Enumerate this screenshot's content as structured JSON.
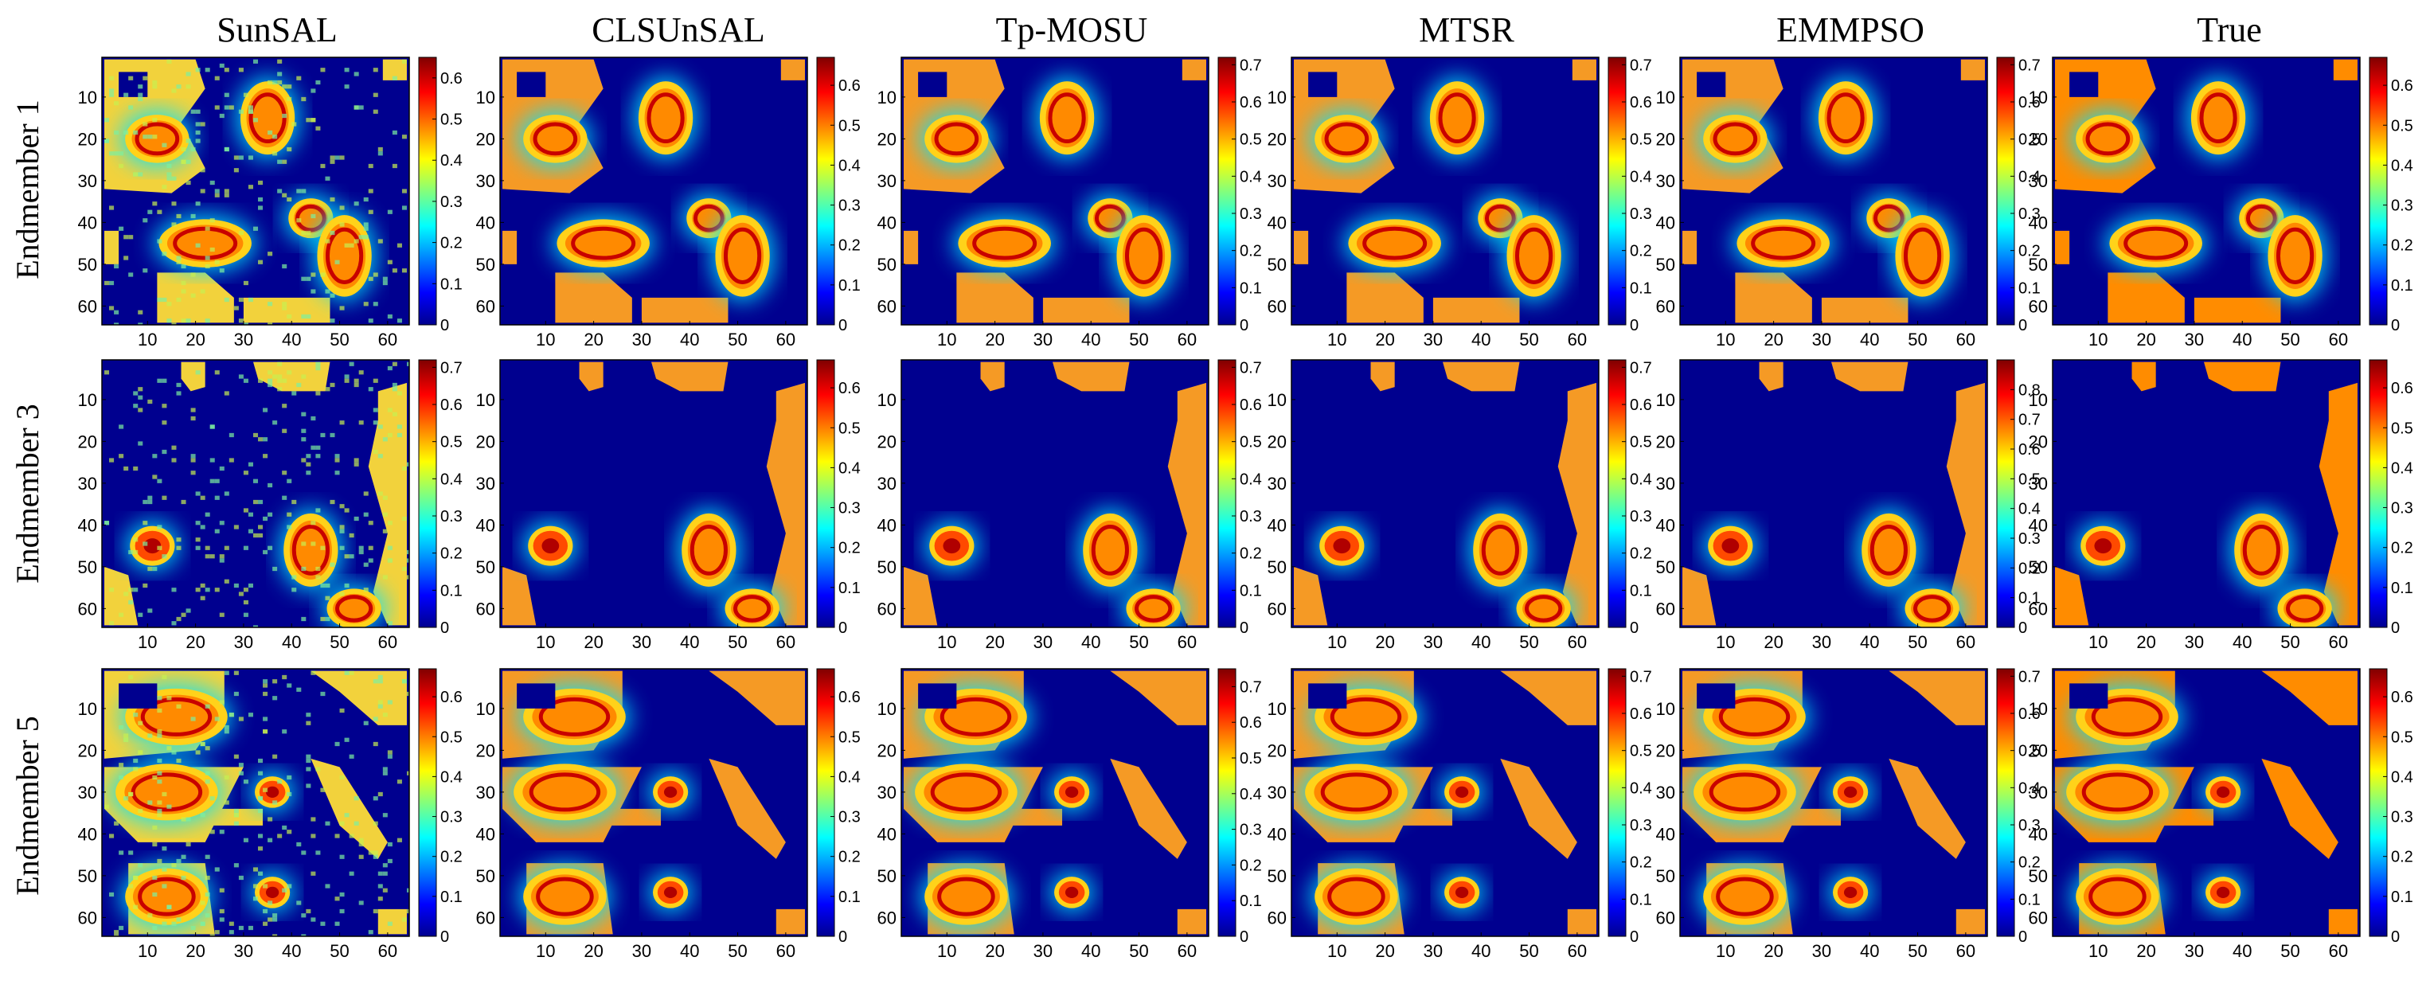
{
  "chart_data": {
    "type": "heatmap",
    "title": "",
    "methods": [
      "SunSAL",
      "CLSUnSAL",
      "Tp-MOSU",
      "MTSR",
      "EMMPSO",
      "True"
    ],
    "endmembers": [
      "Endmember 1",
      "Endmember 3",
      "Endmember 5"
    ],
    "grid_size": 64,
    "axis_range": [
      1,
      64
    ],
    "x_ticks": [
      10,
      20,
      30,
      40,
      50,
      60
    ],
    "y_ticks": [
      10,
      20,
      30,
      40,
      50,
      60
    ],
    "colormap": "jet",
    "colormap_stops": [
      "#00008f",
      "#0000ff",
      "#00ffff",
      "#ffff00",
      "#ff0000",
      "#800000"
    ],
    "colorbar_ranges": [
      [
        [
          0,
          0.65
        ],
        [
          0,
          0.67
        ],
        [
          0,
          0.72
        ],
        [
          0,
          0.72
        ],
        [
          0,
          0.72
        ],
        [
          0,
          0.67
        ]
      ],
      [
        [
          0,
          0.72
        ],
        [
          0,
          0.67
        ],
        [
          0,
          0.72
        ],
        [
          0,
          0.72
        ],
        [
          0,
          0.9
        ],
        [
          0,
          0.67
        ]
      ],
      [
        [
          0,
          0.67
        ],
        [
          0,
          0.67
        ],
        [
          0,
          0.75
        ],
        [
          0,
          0.72
        ],
        [
          0,
          0.72
        ],
        [
          0,
          0.67
        ]
      ]
    ],
    "colorbar_ticks": [
      [
        [
          0,
          0.1,
          0.2,
          0.3,
          0.4,
          0.5,
          0.6
        ],
        [
          0,
          0.1,
          0.2,
          0.3,
          0.4,
          0.5,
          0.6
        ],
        [
          0,
          0.1,
          0.2,
          0.3,
          0.4,
          0.5,
          0.6,
          0.7
        ],
        [
          0,
          0.1,
          0.2,
          0.3,
          0.4,
          0.5,
          0.6,
          0.7
        ],
        [
          0,
          0.1,
          0.2,
          0.3,
          0.4,
          0.5,
          0.6,
          0.7
        ],
        [
          0,
          0.1,
          0.2,
          0.3,
          0.4,
          0.5,
          0.6
        ]
      ],
      [
        [
          0,
          0.1,
          0.2,
          0.3,
          0.4,
          0.5,
          0.6,
          0.7
        ],
        [
          0,
          0.1,
          0.2,
          0.3,
          0.4,
          0.5,
          0.6
        ],
        [
          0,
          0.1,
          0.2,
          0.3,
          0.4,
          0.5,
          0.6,
          0.7
        ],
        [
          0,
          0.1,
          0.2,
          0.3,
          0.4,
          0.5,
          0.6,
          0.7
        ],
        [
          0,
          0.1,
          0.2,
          0.3,
          0.4,
          0.5,
          0.6,
          0.7,
          0.8
        ],
        [
          0,
          0.1,
          0.2,
          0.3,
          0.4,
          0.5,
          0.6
        ]
      ],
      [
        [
          0,
          0.1,
          0.2,
          0.3,
          0.4,
          0.5,
          0.6
        ],
        [
          0,
          0.1,
          0.2,
          0.3,
          0.4,
          0.5,
          0.6
        ],
        [
          0,
          0.1,
          0.2,
          0.3,
          0.4,
          0.5,
          0.6,
          0.7
        ],
        [
          0,
          0.1,
          0.2,
          0.3,
          0.4,
          0.5,
          0.6,
          0.7
        ],
        [
          0,
          0.1,
          0.2,
          0.3,
          0.4,
          0.5,
          0.6,
          0.7
        ],
        [
          0,
          0.1,
          0.2,
          0.3,
          0.4,
          0.5,
          0.6
        ]
      ]
    ],
    "description_note": "6 x 3 grid of 64x64 abundance maps; high-abundance rings (~0.6-0.7, red) on a near-zero (dark blue) background"
  }
}
